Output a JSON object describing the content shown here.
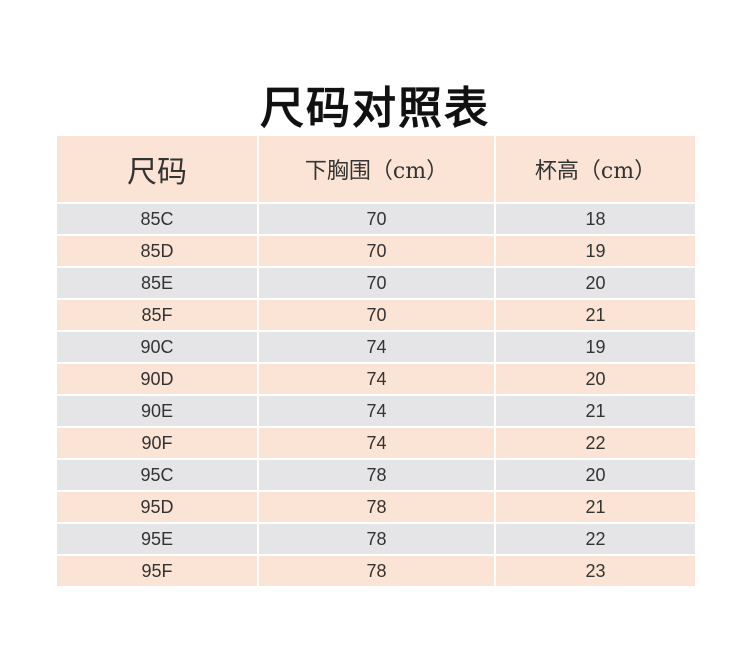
{
  "title": "尺码对照表",
  "colors": {
    "peach": "#fbe4d5",
    "gray": "#e5e5e7"
  },
  "headers": [
    "尺码",
    "下胸围（cm）",
    "杯高（cm）"
  ],
  "rows": [
    [
      "85C",
      "70",
      "18"
    ],
    [
      "85D",
      "70",
      "19"
    ],
    [
      "85E",
      "70",
      "20"
    ],
    [
      "85F",
      "70",
      "21"
    ],
    [
      "90C",
      "74",
      "19"
    ],
    [
      "90D",
      "74",
      "20"
    ],
    [
      "90E",
      "74",
      "21"
    ],
    [
      "90F",
      "74",
      "22"
    ],
    [
      "95C",
      "78",
      "20"
    ],
    [
      "95D",
      "78",
      "21"
    ],
    [
      "95E",
      "78",
      "22"
    ],
    [
      "95F",
      "78",
      "23"
    ]
  ]
}
